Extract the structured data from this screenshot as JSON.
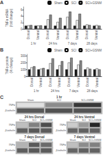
{
  "chart_data": [
    {
      "type": "bar",
      "title": "A",
      "ylabel": "TNFα mRNA\n(fold change)",
      "categories": [
        "Dorsal",
        "Ventral",
        "Dorsal",
        "Ventral",
        "Dorsal",
        "Ventral",
        "Dorsal",
        "Ventral"
      ],
      "category_groups": [
        "1 hr",
        "24 hrs",
        "7 days",
        "28 days"
      ],
      "series": [
        {
          "name": "Sham",
          "color": "#1a1a1a",
          "values": [
            1.0,
            1.0,
            1.0,
            1.0,
            1.0,
            1.0,
            1.0,
            1.0
          ]
        },
        {
          "name": "SCI",
          "color": "#f0f0f0",
          "values": [
            1.1,
            1.05,
            3.0,
            2.2,
            3.8,
            2.8,
            1.4,
            1.2
          ]
        },
        {
          "name": "SCI+GSNM",
          "color": "#888888",
          "values": [
            1.2,
            1.1,
            4.5,
            3.5,
            5.5,
            4.8,
            1.2,
            1.0
          ]
        }
      ],
      "ylim": [
        0,
        7
      ],
      "yticks": [
        0,
        2,
        4,
        6
      ],
      "grid": false,
      "legend": "upper right"
    },
    {
      "type": "bar",
      "title": "B",
      "ylabel": "TNFα protein\n(% change)",
      "categories": [
        "Dorsal",
        "Ventral",
        "Dorsal",
        "Ventral",
        "Dorsal",
        "Ventral",
        "Dorsal",
        "Ventral"
      ],
      "category_groups": [
        "1 hr",
        "24 hrs",
        "7 days",
        "28 days"
      ],
      "series": [
        {
          "name": "Sham",
          "color": "#1a1a1a",
          "values": [
            100,
            100,
            100,
            100,
            100,
            100,
            100,
            100
          ]
        },
        {
          "name": "SCI",
          "color": "#f0f0f0",
          "values": [
            130,
            110,
            190,
            160,
            200,
            170,
            125,
            115
          ]
        },
        {
          "name": "SCI+GSNM",
          "color": "#888888",
          "values": [
            145,
            120,
            260,
            220,
            270,
            230,
            108,
            100
          ]
        }
      ],
      "ylim": [
        0,
        320
      ],
      "yticks": [
        0,
        100,
        200,
        300
      ],
      "grid": false,
      "legend": "upper right"
    },
    {
      "type": "heatmap",
      "title": "C",
      "zlim": [
        0,
        1
      ],
      "panels": [
        {
          "title": "1 hr",
          "categories": [
            "Sham",
            "SCI",
            "SCI+GSNM"
          ],
          "rows": [
            "TNFα",
            "β-tubulin"
          ],
          "values": [
            [
              0.88,
              0.55,
              0.22
            ],
            [
              0.35,
              0.32,
              0.33
            ]
          ]
        },
        {
          "title": "24 hrs Dorsal",
          "categories": [
            "Sham",
            "SCI",
            "SCI+GSNM"
          ],
          "rows": [
            "TNFα",
            "β-tubulin"
          ],
          "values": [
            [
              0.75,
              0.5,
              0.3
            ],
            [
              0.38,
              0.35,
              0.36
            ]
          ]
        },
        {
          "title": "24 hrs Ventral",
          "categories": [
            "Sham",
            "SCI",
            "SCI+GSNM"
          ],
          "rows": [
            "TNFα",
            "β-tubulin"
          ],
          "values": [
            [
              0.8,
              0.6,
              0.15
            ],
            [
              0.4,
              0.38,
              0.39
            ]
          ]
        },
        {
          "title": "7 days Dorsal",
          "categories": [
            "Sham",
            "SCI",
            "SCI+GSNM"
          ],
          "rows": [
            "TNFα",
            "β-tubulin"
          ],
          "values": [
            [
              0.7,
              0.35,
              0.42
            ],
            [
              0.37,
              0.35,
              0.36
            ]
          ]
        },
        {
          "title": "7 days Ventral",
          "categories": [
            "Sham",
            "SCI",
            "SCI+GSNM"
          ],
          "rows": [
            "TNFα",
            "β-tubulin"
          ],
          "values": [
            [
              0.75,
              0.55,
              0.5
            ],
            [
              0.4,
              0.38,
              0.39
            ]
          ]
        }
      ]
    }
  ]
}
